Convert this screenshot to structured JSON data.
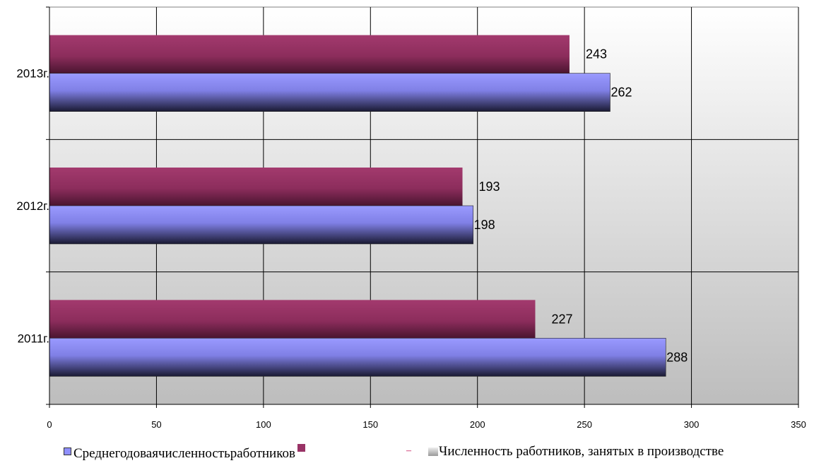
{
  "chart_data": {
    "type": "bar",
    "orientation": "horizontal",
    "categories": [
      "2013г.",
      "2012г.",
      "2011г."
    ],
    "series": [
      {
        "name": "Численность работников, занятых в производстве",
        "values": [
          243,
          193,
          227
        ],
        "color": "#993366"
      },
      {
        "name": "Среднегодоваячисленностьработников",
        "values": [
          262,
          198,
          288
        ],
        "color": "#8f8fff"
      }
    ],
    "xlim": [
      0,
      350
    ],
    "xticks": [
      0,
      50,
      100,
      150,
      200,
      250,
      300,
      350
    ],
    "grid": true,
    "legend_position": "bottom",
    "background": "gradient light-to-dark gray"
  },
  "legend": {
    "item1": "Среднегодоваячисленностьработников",
    "item2": "Численность работников, занятых в производстве",
    "dash": "–",
    "dot": "·"
  }
}
